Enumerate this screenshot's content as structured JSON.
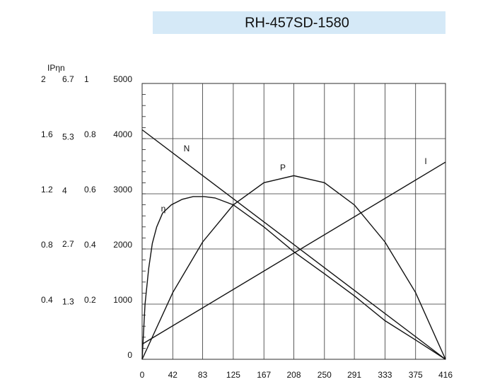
{
  "chart_data": {
    "type": "line",
    "title": "RH-457SD-1580",
    "axis_header": "IPηn",
    "xlim": [
      0,
      416
    ],
    "xticks": [
      0,
      42,
      83,
      125,
      167,
      208,
      250,
      291,
      333,
      375,
      416
    ],
    "ylim": [
      0,
      5000
    ],
    "yticks": [
      0,
      1000,
      2000,
      3000,
      4000,
      5000
    ],
    "i_lim": [
      0,
      2.0
    ],
    "i_ticks": [
      0.4,
      0.8,
      1.2,
      1.6,
      2.0
    ],
    "p_lim": [
      0,
      6.7
    ],
    "p_ticks": [
      1.3,
      2.7,
      4.0,
      5.3,
      6.7
    ],
    "eta_lim": [
      0,
      1
    ],
    "eta_ticks": [
      0.2,
      0.4,
      0.6,
      0.8,
      1
    ],
    "grid": true,
    "series": [
      {
        "name": "N",
        "color": "#111111",
        "axis": "n",
        "x": [
          0,
          416
        ],
        "values": [
          4160,
          0
        ]
      },
      {
        "name": "I",
        "color": "#111111",
        "axis": "i",
        "x": [
          0,
          416
        ],
        "values": [
          0.11,
          1.43
        ]
      },
      {
        "name": "P",
        "color": "#111111",
        "axis": "p",
        "x": [
          0,
          42,
          83,
          125,
          167,
          208,
          250,
          291,
          333,
          375,
          416
        ],
        "values": [
          0,
          1.62,
          2.85,
          3.75,
          4.29,
          4.46,
          4.29,
          3.75,
          2.85,
          1.62,
          0
        ]
      },
      {
        "name": "η",
        "color": "#111111",
        "axis": "eta",
        "x": [
          0,
          4,
          9,
          14,
          20,
          28,
          40,
          55,
          70,
          85,
          100,
          125,
          167,
          208,
          250,
          291,
          333,
          375,
          416
        ],
        "values": [
          0,
          0.2,
          0.33,
          0.42,
          0.48,
          0.53,
          0.56,
          0.58,
          0.59,
          0.59,
          0.585,
          0.56,
          0.48,
          0.39,
          0.31,
          0.23,
          0.14,
          0.07,
          0
        ]
      }
    ]
  }
}
